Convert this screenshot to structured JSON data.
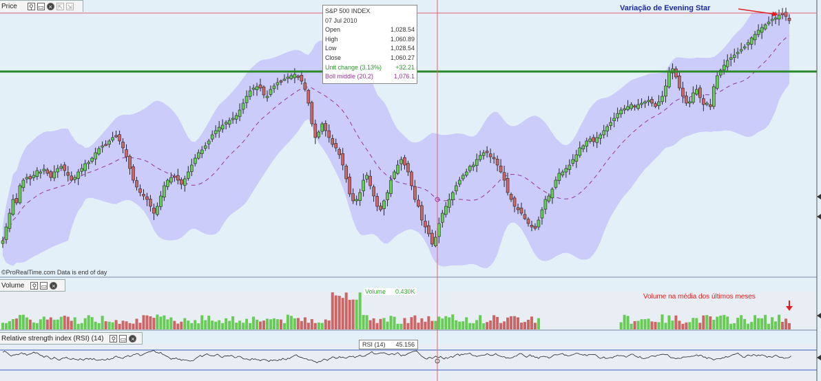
{
  "price_panel": {
    "title": "Price"
  },
  "volume_panel": {
    "title": "Volume"
  },
  "rsi_panel": {
    "title": "Relative strength index (RSI) (14)"
  },
  "source_text": "©ProRealTime.com  Data is end of day",
  "annotations": {
    "evening_star": "Variação de Evening Star",
    "volume_note": "Volume na média dos últimos meses"
  },
  "tooltip": {
    "title": "S&P 500 INDEX",
    "date": "07 Jul 2010",
    "rows": [
      {
        "label": "Open",
        "value": "1,028.54"
      },
      {
        "label": "High",
        "value": "1,060.89"
      },
      {
        "label": "Low",
        "value": "1,028.54"
      },
      {
        "label": "Close",
        "value": "1,060.27"
      },
      {
        "label": "Unit change (3.13%)",
        "value": "+32.21"
      },
      {
        "label": "Boll middle (20,2)",
        "value": "1,076.1"
      }
    ]
  },
  "volume_label": {
    "name": "Volume",
    "value": "0.430K"
  },
  "rsi_label": {
    "name": "RSI (14)",
    "value": "45.156"
  },
  "colors": {
    "up": "#66cc55",
    "down": "#cc6666",
    "band": "#c8c8f8",
    "ma": "#993399",
    "support": "#2a8a2a",
    "rsi_line": "#222222",
    "cursor": "#e06070",
    "annotation_blue": "#1a2aa0",
    "annotation_red": "#e02020"
  },
  "chart_data": [
    {
      "type": "candlestick",
      "title": "",
      "indicators": [
        "Bollinger Bands (20,2)"
      ],
      "support_line": "horizontal",
      "ohlc_shape_close": [
        350,
        330,
        310,
        290,
        295,
        270,
        262,
        258,
        260,
        255,
        248,
        250,
        246,
        252,
        258,
        250,
        245,
        242,
        248,
        255,
        262,
        258,
        250,
        245,
        238,
        236,
        230,
        222,
        216,
        212,
        210,
        205,
        200,
        198,
        205,
        215,
        228,
        245,
        262,
        272,
        280,
        285,
        290,
        300,
        310,
        300,
        285,
        270,
        262,
        258,
        258,
        262,
        268,
        260,
        250,
        240,
        230,
        222,
        218,
        212,
        205,
        196,
        190,
        185,
        182,
        178,
        175,
        172,
        168,
        160,
        150,
        140,
        132,
        128,
        126,
        128,
        138,
        140,
        130,
        125,
        120,
        118,
        115,
        112,
        110,
        108,
        112,
        118,
        130,
        150,
        180,
        200,
        192,
        180,
        190,
        200,
        210,
        215,
        225,
        240,
        260,
        282,
        292,
        290,
        280,
        262,
        255,
        270,
        285,
        300,
        305,
        292,
        280,
        262,
        250,
        240,
        232,
        240,
        250,
        270,
        290,
        300,
        320,
        330,
        340,
        355,
        345,
        325,
        310,
        300,
        290,
        280,
        270,
        262,
        255,
        250,
        242,
        240,
        232,
        226,
        222,
        222,
        228,
        230,
        240,
        250,
        262,
        280,
        290,
        300,
        305,
        310,
        318,
        325,
        330,
        332,
        320,
        305,
        290,
        285,
        275,
        262,
        252,
        250,
        245,
        240,
        232,
        225,
        215,
        212,
        205,
        202,
        206,
        200,
        196,
        190,
        184,
        178,
        172,
        165,
        160,
        158,
        155,
        152,
        155,
        152,
        150,
        148,
        146,
        150,
        155,
        148,
        140,
        125,
        105,
        100,
        112,
        128,
        140,
        150,
        148,
        135,
        130,
        142,
        152,
        150,
        155,
        126,
        110,
        102,
        95,
        88,
        84,
        80,
        76,
        72,
        68,
        62,
        55,
        50,
        44,
        40,
        36,
        32,
        28,
        26,
        22,
        20,
        24,
        30
      ],
      "rsi_range": [
        0,
        100
      ],
      "rsi_levels": [
        30,
        70
      ],
      "tooltip_date": "07 Jul 2010"
    }
  ]
}
